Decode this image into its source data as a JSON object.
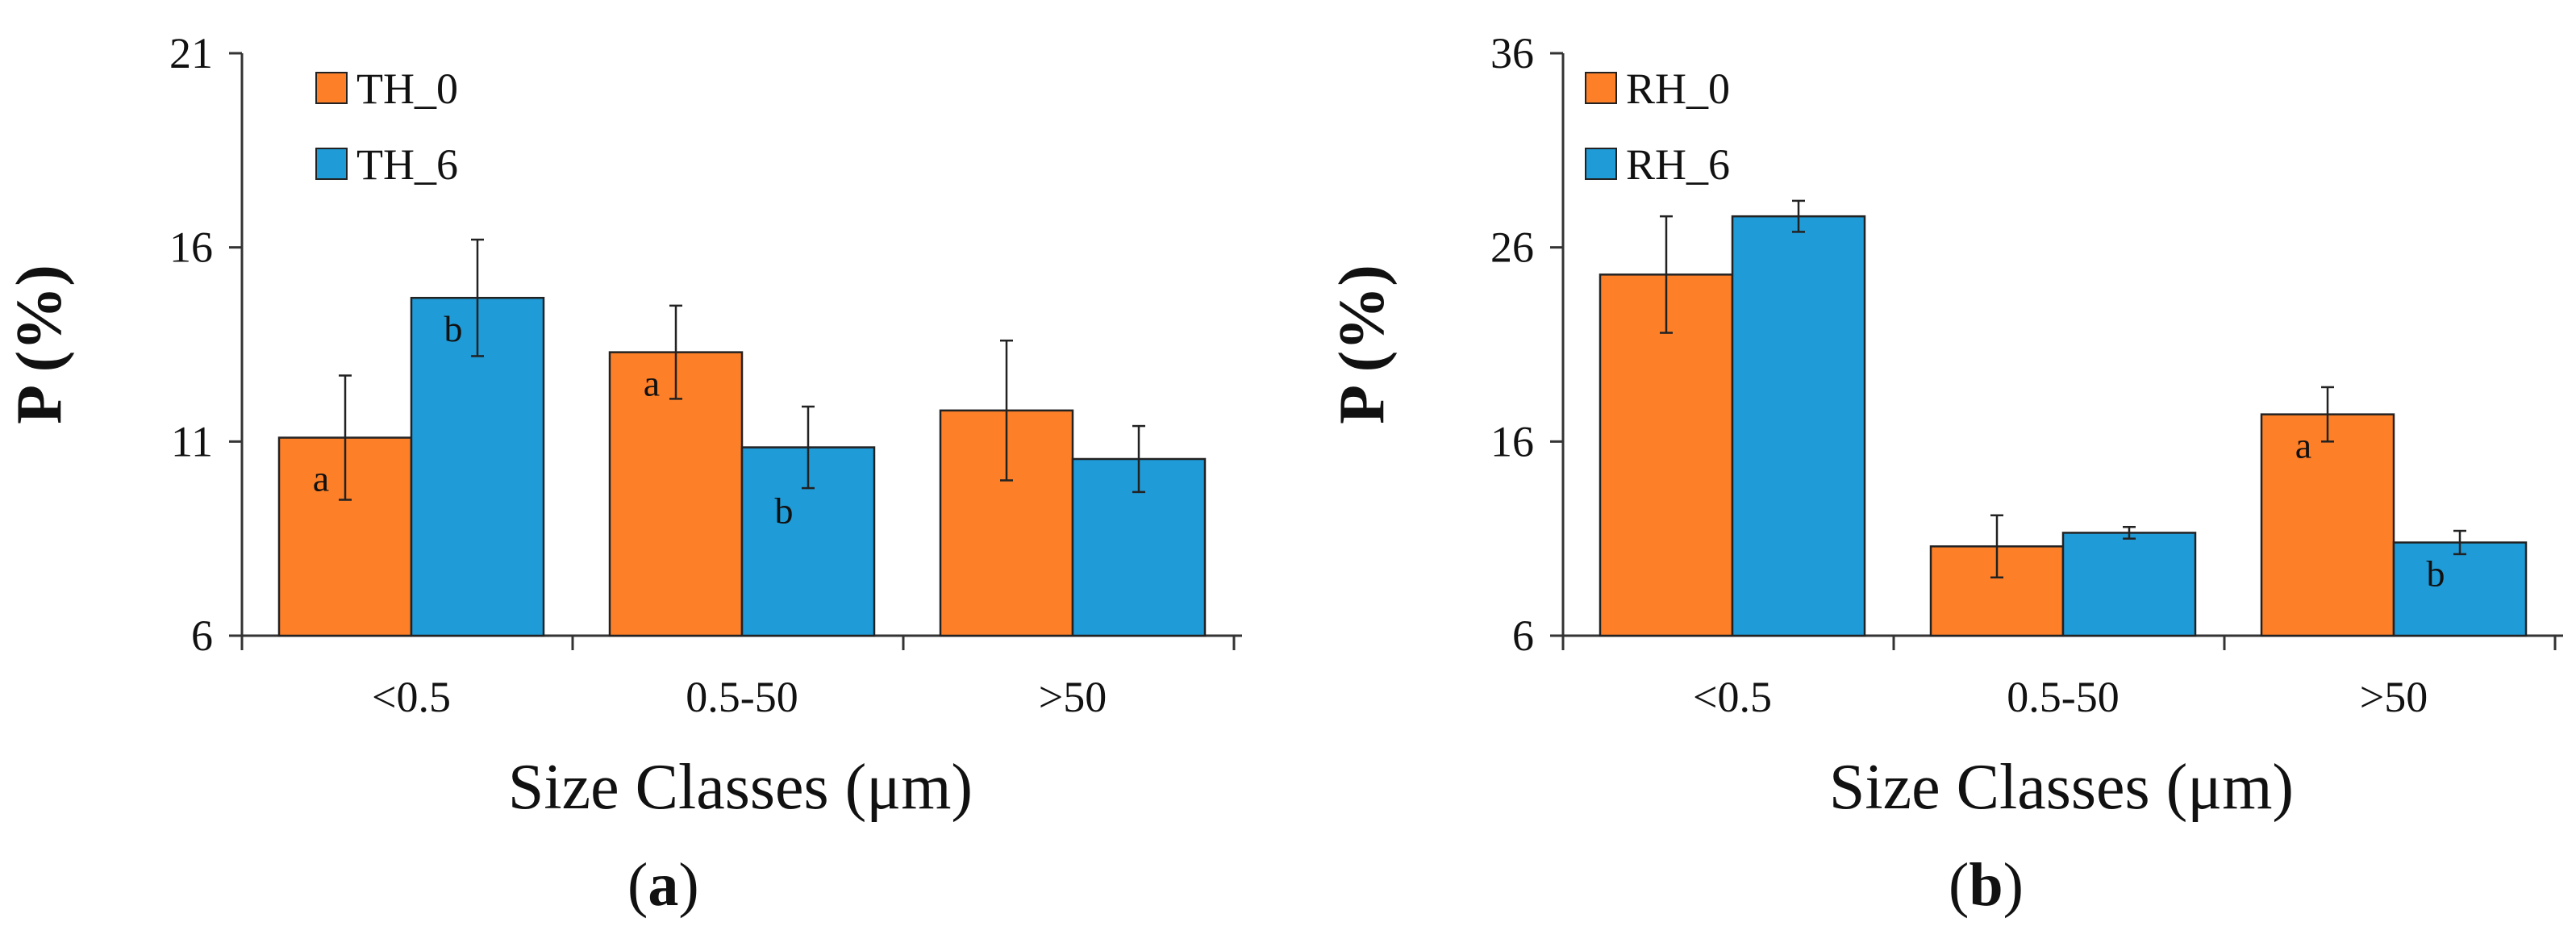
{
  "chart_data": [
    {
      "type": "bar",
      "panel_label": "a",
      "categories": [
        "<0.5",
        "0.5-50",
        ">50"
      ],
      "series": [
        {
          "name": "TH_0",
          "color": "#FD7F28",
          "values": [
            11.1,
            13.3,
            11.8
          ],
          "errors": [
            1.6,
            1.2,
            1.8
          ],
          "annotations": [
            "a",
            "a",
            ""
          ]
        },
        {
          "name": "TH_6",
          "color": "#1F9BD7",
          "values": [
            14.7,
            10.85,
            10.55
          ],
          "errors": [
            1.5,
            1.05,
            0.85
          ],
          "annotations": [
            "b",
            "b",
            ""
          ]
        }
      ],
      "xlabel": "Size Classes (μm)",
      "ylabel": "P (%)",
      "ylim": [
        6,
        21
      ],
      "yticks": [
        6,
        11,
        16,
        21
      ],
      "legend": "top-left"
    },
    {
      "type": "bar",
      "panel_label": "b",
      "categories": [
        "<0.5",
        "0.5-50",
        ">50"
      ],
      "series": [
        {
          "name": "RH_0",
          "color": "#FD7F28",
          "values": [
            24.6,
            10.6,
            17.4
          ],
          "errors": [
            3.0,
            1.6,
            1.4
          ],
          "annotations": [
            "",
            "",
            "a"
          ]
        },
        {
          "name": "RH_6",
          "color": "#1F9BD7",
          "values": [
            27.6,
            11.3,
            10.8
          ],
          "errors": [
            0.8,
            0.3,
            0.6
          ],
          "annotations": [
            "",
            "",
            "b"
          ]
        }
      ],
      "xlabel": "Size Classes (μm)",
      "ylabel": "P (%)",
      "ylim": [
        6,
        36
      ],
      "yticks": [
        6,
        16,
        26,
        36
      ],
      "legend": "top-left"
    }
  ]
}
